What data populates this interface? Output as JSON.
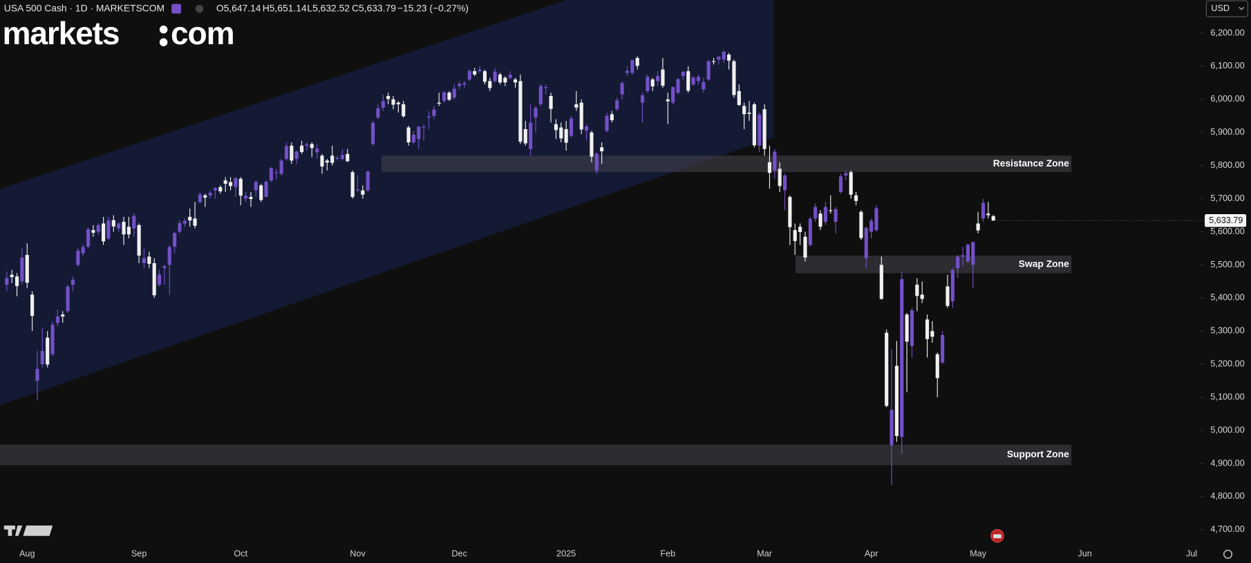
{
  "chart_data": {
    "type": "candlestick",
    "symbol": "USA 500 Cash · 1D · MARKETSCOM",
    "ohlc": [
      "O5,647.14",
      "H5,651.14",
      "L5,632.52",
      "C5,633.79"
    ],
    "change": "−15.23 (−0.27%)",
    "logo": [
      "markets",
      "com"
    ],
    "currency": "USD",
    "up_color": "#7350c8",
    "down_color": "#f0f0f0",
    "categories": [
      null,
      null,
      null,
      null,
      "Aug",
      null,
      null,
      null,
      null,
      null,
      null,
      null,
      null,
      null,
      null,
      null,
      null,
      null,
      null,
      null,
      null,
      null,
      null,
      null,
      null,
      null,
      "Sep",
      null,
      null,
      null,
      null,
      null,
      null,
      null,
      null,
      null,
      null,
      null,
      null,
      null,
      null,
      null,
      null,
      null,
      null,
      null,
      "Oct",
      null,
      null,
      null,
      null,
      null,
      null,
      null,
      null,
      null,
      null,
      null,
      null,
      null,
      null,
      null,
      null,
      null,
      null,
      null,
      null,
      null,
      null,
      "Nov",
      null,
      null,
      null,
      null,
      null,
      null,
      null,
      null,
      null,
      null,
      null,
      null,
      null,
      null,
      null,
      null,
      null,
      null,
      null,
      "Dec",
      null,
      null,
      null,
      null,
      null,
      null,
      null,
      null,
      null,
      null,
      null,
      null,
      null,
      null,
      null,
      null,
      null,
      null,
      null,
      null,
      "2025",
      null,
      null,
      null,
      null,
      null,
      null,
      null,
      null,
      null,
      null,
      null,
      null,
      null,
      null,
      null,
      null,
      null,
      null,
      null,
      "Feb",
      null,
      null,
      null,
      null,
      null,
      null,
      null,
      null,
      null,
      null,
      null,
      null,
      null,
      null,
      null,
      null,
      null,
      null,
      "Mar",
      null,
      null,
      null,
      null,
      null,
      null,
      null,
      null,
      null,
      null,
      null,
      null,
      null,
      null,
      null,
      null,
      null,
      null,
      null,
      null,
      "Apr",
      null,
      null,
      null,
      null,
      null,
      null,
      null,
      null,
      null,
      null,
      null,
      null,
      null,
      null,
      null,
      null,
      null,
      null,
      null,
      null,
      "May",
      null,
      null,
      null,
      null,
      null,
      null,
      null,
      null,
      null,
      null,
      null,
      null,
      null,
      null,
      null,
      null,
      null,
      null,
      null,
      null,
      "Jun",
      null,
      null,
      null,
      null,
      null,
      null,
      null,
      null,
      null,
      null,
      null,
      null,
      null,
      null,
      null,
      null,
      null,
      null,
      null,
      null,
      "Jul",
      null
    ],
    "open": [
      5440,
      5470,
      5465,
      5450,
      5530,
      5410,
      5150,
      5200,
      5280,
      5230,
      5325,
      5350,
      5360,
      5440,
      5500,
      5535,
      5555,
      5605,
      5600,
      5625,
      5580,
      5635,
      5610,
      5630,
      5615,
      5610,
      5620,
      5505,
      5525,
      5505,
      5440,
      5490,
      5500,
      5555,
      5600,
      5625,
      5645,
      5640,
      5690,
      5710,
      5710,
      5725,
      5735,
      5755,
      5750,
      5735,
      5760,
      5700,
      5705,
      5725,
      5740,
      5705,
      5755,
      5780,
      5775,
      5820,
      5860,
      5820,
      5860,
      5860,
      5865,
      5840,
      5830,
      5815,
      5830,
      5820,
      5820,
      5835,
      5780,
      5725,
      5725,
      5725,
      5865,
      5945,
      5975,
      6010,
      6000,
      5990,
      5985,
      5915,
      5870,
      5880,
      5915,
      5945,
      5950,
      5990,
      5995,
      6020,
      6005,
      6040,
      6045,
      6060,
      6085,
      6085,
      6085,
      6055,
      6055,
      6075,
      6065,
      6065,
      6060,
      6055,
      5910,
      5850,
      5945,
      5985,
      6035,
      6010,
      5925,
      5915,
      5910,
      5890,
      5985,
      5990,
      5905,
      5900,
      5785,
      5855,
      5905,
      5955,
      5970,
      6015,
      6080,
      6080,
      6125,
      5990,
      6025,
      6060,
      6055,
      6090,
      6000,
      5990,
      6020,
      6070,
      6085,
      6045,
      6055,
      6030,
      6060,
      6115,
      6120,
      6120,
      6135,
      6115,
      6025,
      5980,
      5960,
      5985,
      5860,
      5970,
      5810,
      5785,
      5790,
      5725,
      5705,
      5605,
      5615,
      5585,
      5560,
      5640,
      5655,
      5630,
      5665,
      5630,
      5720,
      5770,
      5780,
      5710,
      5660,
      5520,
      5600,
      5605,
      5500,
      5295,
      4955,
      5195,
      4980,
      5350,
      5255,
      5440,
      5410,
      5335,
      5300,
      5230,
      5205,
      5435,
      5390,
      5490,
      5525,
      5510,
      5500,
      5625,
      5640,
      5655,
      5647.14,
      null,
      null,
      null,
      null,
      null,
      null,
      null,
      null,
      null,
      null,
      null,
      null,
      null,
      null,
      null,
      null,
      null,
      null,
      null,
      null,
      null,
      null,
      null,
      null,
      null,
      null,
      null,
      null,
      null,
      null,
      null,
      null,
      null,
      null,
      null,
      null,
      null,
      null,
      null,
      null
    ],
    "high": [
      5480,
      5485,
      5475,
      5550,
      5565,
      5420,
      5240,
      5310,
      5300,
      5330,
      5365,
      5360,
      5440,
      5465,
      5550,
      5562,
      5612,
      5620,
      5625,
      5645,
      5645,
      5650,
      5630,
      5645,
      5645,
      5655,
      5625,
      5550,
      5540,
      5520,
      5485,
      5500,
      5560,
      5600,
      5635,
      5640,
      5670,
      5690,
      5720,
      5715,
      5725,
      5735,
      5740,
      5765,
      5765,
      5765,
      5765,
      5720,
      5720,
      5755,
      5745,
      5755,
      5795,
      5790,
      5820,
      5870,
      5870,
      5845,
      5875,
      5870,
      5870,
      5865,
      5835,
      5820,
      5860,
      5830,
      5850,
      5850,
      5785,
      5770,
      5740,
      5785,
      5935,
      5985,
      6015,
      6020,
      6010,
      5995,
      5995,
      5920,
      5905,
      5920,
      5925,
      5965,
      5980,
      6020,
      6025,
      6025,
      6045,
      6055,
      6055,
      6090,
      6095,
      6100,
      6090,
      6065,
      6095,
      6080,
      6070,
      6085,
      6065,
      6075,
      5935,
      5985,
      5980,
      6045,
      6045,
      6020,
      5940,
      5930,
      5935,
      5950,
      6025,
      6000,
      5925,
      5905,
      5840,
      5870,
      5960,
      5965,
      6005,
      6055,
      6100,
      6120,
      6130,
      6020,
      6075,
      6065,
      6085,
      6125,
      6020,
      6040,
      6065,
      6085,
      6100,
      6070,
      6075,
      6065,
      6120,
      6125,
      6130,
      6147,
      6140,
      6120,
      6045,
      5990,
      5995,
      5990,
      5960,
      5985,
      5860,
      5850,
      5810,
      5775,
      5710,
      5625,
      5625,
      5600,
      5645,
      5685,
      5665,
      5690,
      5710,
      5675,
      5775,
      5785,
      5785,
      5720,
      5665,
      5615,
      5640,
      5680,
      5525,
      5305,
      5245,
      5270,
      5480,
      5355,
      5370,
      5460,
      5450,
      5350,
      5330,
      5235,
      5300,
      5470,
      5490,
      5530,
      5555,
      5565,
      5570,
      5660,
      5700,
      5690,
      5651.14,
      null,
      null,
      null,
      null,
      null,
      null,
      null,
      null,
      null,
      null,
      null,
      null,
      null,
      null,
      null,
      null,
      null,
      null,
      null,
      null,
      null,
      null,
      null,
      null,
      null,
      null,
      null,
      null,
      null,
      null,
      null,
      null,
      null,
      null,
      null,
      null,
      null,
      null,
      null,
      null
    ],
    "low": [
      5420,
      5445,
      5405,
      5440,
      5430,
      5300,
      5090,
      5190,
      5190,
      5225,
      5315,
      5325,
      5355,
      5420,
      5495,
      5525,
      5550,
      5585,
      5590,
      5560,
      5575,
      5600,
      5600,
      5560,
      5580,
      5585,
      5505,
      5490,
      5490,
      5400,
      5435,
      5440,
      5410,
      5535,
      5595,
      5615,
      5615,
      5610,
      5685,
      5675,
      5700,
      5700,
      5715,
      5720,
      5725,
      5705,
      5680,
      5690,
      5675,
      5705,
      5690,
      5705,
      5750,
      5760,
      5770,
      5815,
      5805,
      5805,
      5835,
      5845,
      5825,
      5820,
      5775,
      5785,
      5800,
      5815,
      5815,
      5810,
      5700,
      5720,
      5700,
      5720,
      5860,
      5940,
      5965,
      5985,
      5970,
      5960,
      5945,
      5860,
      5865,
      5850,
      5875,
      5910,
      5940,
      5980,
      5990,
      5995,
      6000,
      6030,
      6035,
      6055,
      6070,
      6080,
      6045,
      6025,
      6050,
      6045,
      6040,
      6060,
      6035,
      5865,
      5860,
      5830,
      5900,
      5980,
      6015,
      5930,
      5880,
      5870,
      5845,
      5885,
      5965,
      5895,
      5875,
      5810,
      5775,
      5805,
      5900,
      5930,
      5965,
      6000,
      6070,
      6075,
      6090,
      5930,
      6020,
      6025,
      6040,
      6035,
      5925,
      5985,
      6015,
      6060,
      6020,
      6040,
      6045,
      6020,
      6055,
      6105,
      6105,
      6110,
      6090,
      6005,
      5980,
      5910,
      5935,
      5855,
      5840,
      5830,
      5730,
      5760,
      5720,
      5665,
      5560,
      5530,
      5560,
      5510,
      5555,
      5630,
      5605,
      5620,
      5655,
      5595,
      5715,
      5755,
      5700,
      5680,
      5575,
      5490,
      5580,
      5600,
      5395,
      5070,
      4835,
      4965,
      4930,
      5115,
      5220,
      5360,
      5385,
      5220,
      5265,
      5100,
      5200,
      5370,
      5370,
      5460,
      5495,
      5505,
      5430,
      5595,
      5630,
      5640,
      5632.52,
      null,
      null,
      null,
      null,
      null,
      null,
      null,
      null,
      null,
      null,
      null,
      null,
      null,
      null,
      null,
      null,
      null,
      null,
      null,
      null,
      null,
      null,
      null,
      null,
      null,
      null,
      null,
      null,
      null,
      null,
      null,
      null,
      null,
      null,
      null,
      null,
      null,
      null,
      null,
      null
    ],
    "close": [
      5460,
      5463,
      5436,
      5522,
      5446,
      5346,
      5186,
      5240,
      5199,
      5319,
      5344,
      5344,
      5434,
      5455,
      5543,
      5554,
      5608,
      5597,
      5620,
      5571,
      5634,
      5616,
      5625,
      5592,
      5592,
      5648,
      5528,
      5520,
      5503,
      5408,
      5471,
      5496,
      5554,
      5596,
      5626,
      5633,
      5634,
      5618,
      5713,
      5703,
      5718,
      5732,
      5722,
      5745,
      5738,
      5762,
      5709,
      5709,
      5699,
      5751,
      5696,
      5751,
      5792,
      5780,
      5815,
      5859,
      5815,
      5842,
      5841,
      5864,
      5853,
      5851,
      5797,
      5809,
      5808,
      5823,
      5832,
      5813,
      5705,
      5728,
      5712,
      5782,
      5929,
      5973,
      5995,
      6001,
      5984,
      5985,
      5949,
      5870,
      5893,
      5917,
      5917,
      5948,
      5969,
      5987,
      6021,
      5999,
      6032,
      6047,
      6049,
      6086,
      6075,
      6090,
      6053,
      6034,
      6084,
      6051,
      6051,
      6074,
      6051,
      5872,
      5867,
      5930,
      5974,
      6040,
      6037,
      5971,
      5907,
      5882,
      5869,
      5942,
      5975,
      5909,
      5918,
      5827,
      5836,
      5843,
      5950,
      5937,
      5997,
      6049,
      6086,
      6119,
      6101,
      6012,
      6068,
      6039,
      6071,
      6041,
      5994,
      6037,
      6061,
      6083,
      6026,
      6066,
      6068,
      6052,
      6115,
      6114,
      6129,
      6144,
      6117,
      6013,
      5983,
      5955,
      5956,
      5861,
      5954,
      5850,
      5778,
      5842,
      5738,
      5770,
      5614,
      5572,
      5599,
      5522,
      5639,
      5675,
      5615,
      5675,
      5663,
      5668,
      5767,
      5777,
      5712,
      5693,
      5581,
      5612,
      5633,
      5671,
      5397,
      5074,
      5062,
      4983,
      5457,
      5268,
      5363,
      5406,
      5397,
      5276,
      5283,
      5158,
      5288,
      5376,
      5485,
      5525,
      5529,
      5561,
      5569,
      5604,
      5687,
      5650,
      5633.79,
      null,
      null,
      null,
      null,
      null,
      null,
      null,
      null,
      null,
      null,
      null,
      null,
      null,
      null,
      null,
      null,
      null,
      null,
      null,
      null,
      null,
      null,
      null,
      null,
      null,
      null,
      null,
      null,
      null,
      null,
      null,
      null,
      null,
      null,
      null,
      null,
      null,
      null,
      null,
      null
    ],
    "ylim": [
      4650,
      6300
    ],
    "yticks": [
      {
        "value": 6200,
        "label": "6,200.00"
      },
      {
        "value": 6100,
        "label": "6,100.00"
      },
      {
        "value": 6000,
        "label": "6,000.00"
      },
      {
        "value": 5900,
        "label": "5,900.00"
      },
      {
        "value": 5800,
        "label": "5,800.00"
      },
      {
        "value": 5700,
        "label": "5,700.00"
      },
      {
        "value": 5600,
        "label": "5,600.00"
      },
      {
        "value": 5500,
        "label": "5,500.00"
      },
      {
        "value": 5400,
        "label": "5,400.00"
      },
      {
        "value": 5300,
        "label": "5,300.00"
      },
      {
        "value": 5200,
        "label": "5,200.00"
      },
      {
        "value": 5100,
        "label": "5,100.00"
      },
      {
        "value": 5000,
        "label": "5,000.00"
      },
      {
        "value": 4900,
        "label": "4,900.00"
      },
      {
        "value": 4800,
        "label": "4,800.00"
      },
      {
        "value": 4700,
        "label": "4,700.00"
      }
    ],
    "last_price": {
      "value": 5633.79,
      "label": "5,633.79"
    },
    "annotations": [
      {
        "label": "Resistance Zone",
        "range": [
          5780,
          5830
        ]
      },
      {
        "label": "Swap Zone",
        "range": [
          5475,
          5528
        ]
      },
      {
        "label": "Support Zone",
        "range": [
          4895,
          4957
        ]
      }
    ]
  }
}
